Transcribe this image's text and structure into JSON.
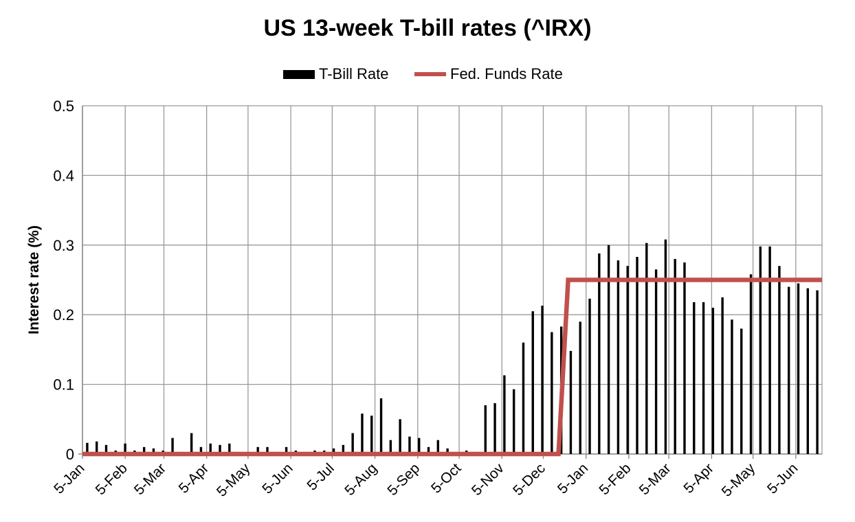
{
  "chart_data": {
    "type": "bar+line",
    "title": "US 13-week T-bill rates (^IRX)",
    "ylabel": "Interest rate (%)",
    "xlabel": "",
    "ylim": [
      0,
      0.5
    ],
    "y_ticks": [
      "0",
      "0.1",
      "0.2",
      "0.3",
      "0.4",
      "0.5"
    ],
    "x_ticks": [
      "5-Jan",
      "5-Feb",
      "5-Mar",
      "5-Apr",
      "5-May",
      "5-Jun",
      "5-Jul",
      "5-Aug",
      "5-Sep",
      "5-Oct",
      "5-Nov",
      "5-Dec",
      "5-Jan",
      "5-Feb",
      "5-Mar",
      "5-Apr",
      "5-May",
      "5-Jun"
    ],
    "grid": true,
    "legend_position": "top-center",
    "series": [
      {
        "name": "T-Bill Rate",
        "type": "bar",
        "color": "#000000",
        "values": [
          0.016,
          0.018,
          0.013,
          0.005,
          0.015,
          0.005,
          0.01,
          0.008,
          0.005,
          0.023,
          0.003,
          0.03,
          0.01,
          0.015,
          0.013,
          0.015,
          0.003,
          0.003,
          0.01,
          0.01,
          0.003,
          0.01,
          0.005,
          0.003,
          0.005,
          0.005,
          0.008,
          0.013,
          0.03,
          0.058,
          0.055,
          0.08,
          0.02,
          0.05,
          0.025,
          0.023,
          0.01,
          0.02,
          0.008,
          0.003,
          0.005,
          0.003,
          0.07,
          0.073,
          0.113,
          0.093,
          0.16,
          0.205,
          0.213,
          0.175,
          0.183,
          0.148,
          0.19,
          0.223,
          0.288,
          0.3,
          0.278,
          0.27,
          0.283,
          0.303,
          0.265,
          0.308,
          0.28,
          0.275,
          0.218,
          0.218,
          0.21,
          0.225,
          0.193,
          0.18,
          0.258,
          0.298,
          0.298,
          0.27,
          0.24,
          0.245,
          0.238,
          0.235
        ]
      },
      {
        "name": "Fed. Funds Rate",
        "type": "line",
        "color": "#c0504d",
        "points": [
          {
            "x": "2015-01-05",
            "y": 0
          },
          {
            "x": "2015-12-16",
            "y": 0
          },
          {
            "x": "2015-12-23",
            "y": 0.25
          },
          {
            "x": "2016-06-24",
            "y": 0.25
          }
        ]
      }
    ]
  }
}
